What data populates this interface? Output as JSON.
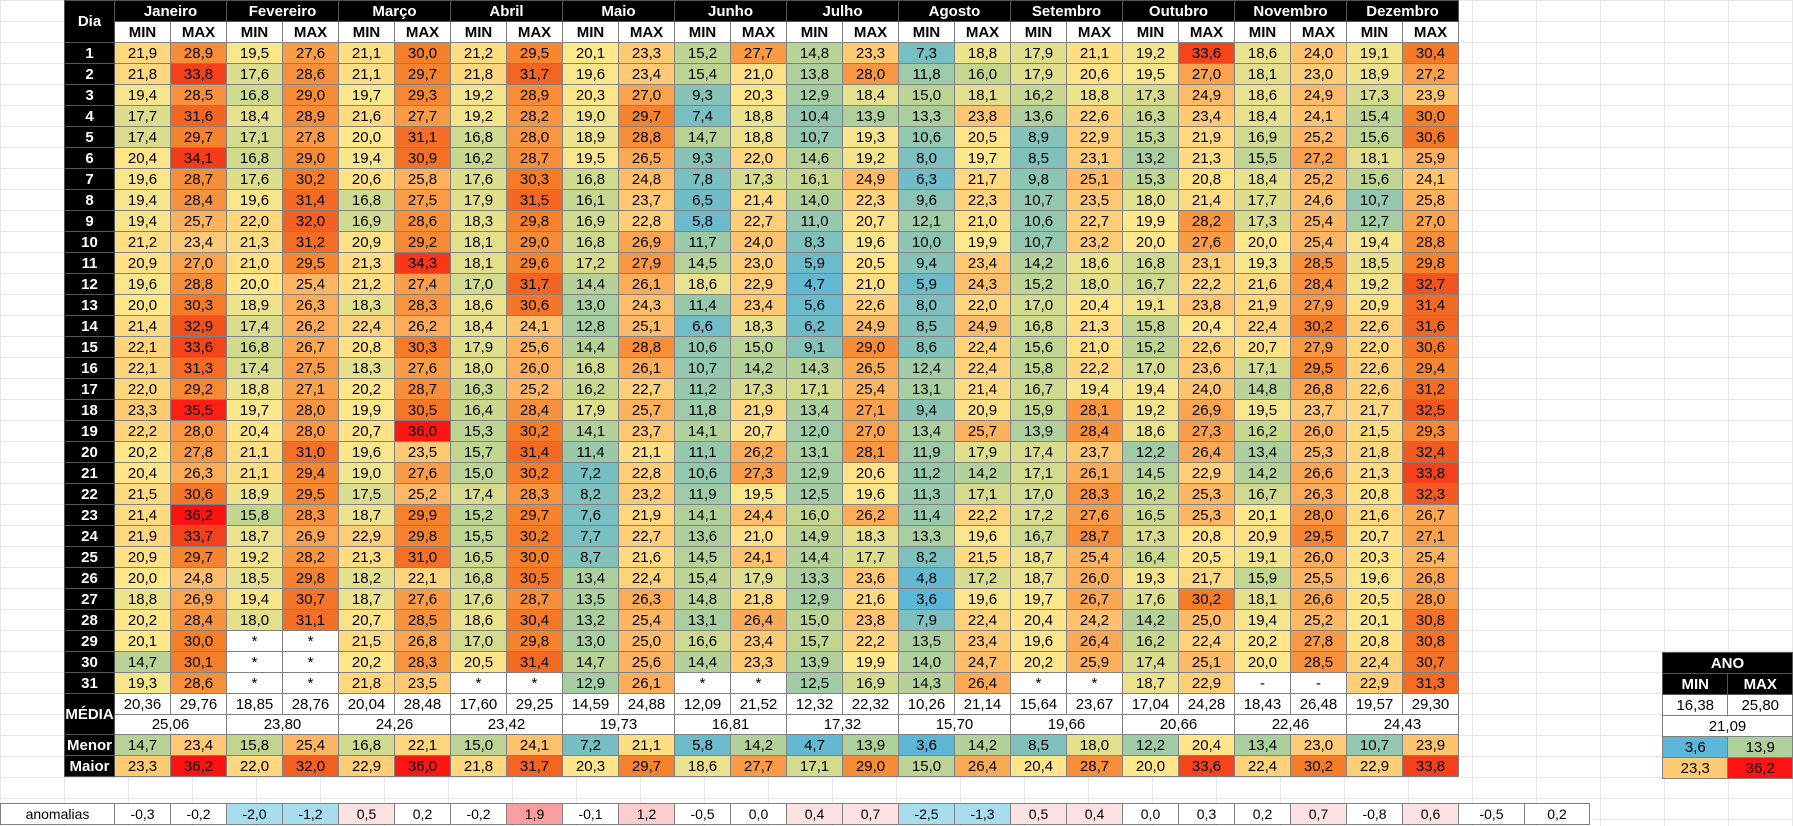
{
  "header": {
    "day_label": "Dia",
    "min_label": "MIN",
    "max_label": "MAX",
    "months": [
      "Janeiro",
      "Fevereiro",
      "Março",
      "Abril",
      "Maio",
      "Junho",
      "Julho",
      "Agosto",
      "Setembro",
      "Outubro",
      "Novembro",
      "Dezembro"
    ]
  },
  "days": [
    "1",
    "2",
    "3",
    "4",
    "5",
    "6",
    "7",
    "8",
    "9",
    "10",
    "11",
    "12",
    "13",
    "14",
    "15",
    "16",
    "17",
    "18",
    "19",
    "20",
    "21",
    "22",
    "23",
    "24",
    "25",
    "26",
    "27",
    "28",
    "29",
    "30",
    "31"
  ],
  "rows": [
    [
      "21,9",
      "28,9",
      "19,5",
      "27,6",
      "21,1",
      "30,0",
      "21,2",
      "29,5",
      "20,1",
      "23,3",
      "15,2",
      "27,7",
      "14,8",
      "23,3",
      "7,3",
      "18,8",
      "17,9",
      "21,1",
      "19,2",
      "33,6",
      "18,6",
      "24,0",
      "19,1",
      "30,4"
    ],
    [
      "21,8",
      "33,8",
      "17,6",
      "28,6",
      "21,1",
      "29,7",
      "21,8",
      "31,7",
      "19,6",
      "23,4",
      "15,4",
      "21,0",
      "13,8",
      "28,0",
      "11,8",
      "16,0",
      "17,9",
      "20,6",
      "19,5",
      "27,0",
      "18,1",
      "23,0",
      "18,9",
      "27,2"
    ],
    [
      "19,4",
      "28,5",
      "16,8",
      "29,0",
      "19,7",
      "29,3",
      "19,2",
      "28,9",
      "20,3",
      "27,0",
      "9,3",
      "20,3",
      "12,9",
      "18,4",
      "15,0",
      "18,1",
      "16,2",
      "18,8",
      "17,3",
      "24,9",
      "18,6",
      "24,9",
      "17,3",
      "23,9"
    ],
    [
      "17,7",
      "31,6",
      "18,4",
      "28,9",
      "21,6",
      "27,7",
      "19,2",
      "28,2",
      "19,0",
      "29,7",
      "7,4",
      "18,8",
      "10,4",
      "13,9",
      "13,3",
      "23,8",
      "13,6",
      "22,6",
      "16,3",
      "23,4",
      "18,4",
      "24,1",
      "15,4",
      "30,0"
    ],
    [
      "17,4",
      "29,7",
      "17,1",
      "27,8",
      "20,0",
      "31,1",
      "16,8",
      "28,0",
      "18,9",
      "28,8",
      "14,7",
      "18,8",
      "10,7",
      "19,3",
      "10,6",
      "20,5",
      "8,9",
      "22,9",
      "15,3",
      "21,9",
      "16,9",
      "25,2",
      "15,6",
      "30,6"
    ],
    [
      "20,4",
      "34,1",
      "16,8",
      "29,0",
      "19,4",
      "30,9",
      "16,2",
      "28,7",
      "19,5",
      "26,5",
      "9,3",
      "22,0",
      "14,6",
      "19,2",
      "8,0",
      "19,7",
      "8,5",
      "23,1",
      "13,2",
      "21,3",
      "15,5",
      "27,2",
      "18,1",
      "25,9"
    ],
    [
      "19,6",
      "28,7",
      "17,6",
      "30,2",
      "20,6",
      "25,8",
      "17,6",
      "30,3",
      "16,8",
      "24,8",
      "7,8",
      "17,3",
      "16,1",
      "24,9",
      "6,3",
      "21,7",
      "9,8",
      "25,1",
      "15,3",
      "20,8",
      "18,4",
      "25,2",
      "15,6",
      "24,1"
    ],
    [
      "19,4",
      "28,4",
      "19,6",
      "31,4",
      "16,8",
      "27,5",
      "17,9",
      "31,5",
      "16,1",
      "23,7",
      "6,5",
      "21,4",
      "14,0",
      "22,3",
      "9,6",
      "22,3",
      "10,7",
      "23,5",
      "18,0",
      "21,4",
      "17,7",
      "24,6",
      "10,7",
      "25,8"
    ],
    [
      "19,4",
      "25,7",
      "22,0",
      "32,0",
      "16,9",
      "28,6",
      "18,3",
      "29,8",
      "16,9",
      "22,8",
      "5,8",
      "22,7",
      "11,0",
      "20,7",
      "12,1",
      "21,0",
      "10,6",
      "22,7",
      "19,9",
      "28,2",
      "17,3",
      "25,4",
      "12,7",
      "27,0"
    ],
    [
      "21,2",
      "23,4",
      "21,3",
      "31,2",
      "20,9",
      "29,2",
      "18,1",
      "29,0",
      "16,8",
      "26,9",
      "11,7",
      "24,0",
      "8,3",
      "19,6",
      "10,0",
      "19,9",
      "10,7",
      "23,2",
      "20,0",
      "27,6",
      "20,0",
      "25,4",
      "19,4",
      "28,8"
    ],
    [
      "20,9",
      "27,0",
      "21,0",
      "29,5",
      "21,3",
      "34,3",
      "18,1",
      "29,6",
      "17,2",
      "27,9",
      "14,5",
      "23,0",
      "5,9",
      "20,5",
      "9,4",
      "23,4",
      "14,2",
      "18,6",
      "16,8",
      "23,1",
      "19,3",
      "28,5",
      "18,5",
      "29,8"
    ],
    [
      "19,6",
      "28,8",
      "20,0",
      "25,4",
      "21,2",
      "27,4",
      "17,0",
      "31,7",
      "14,4",
      "26,1",
      "18,6",
      "22,9",
      "4,7",
      "21,0",
      "5,9",
      "24,3",
      "15,2",
      "18,0",
      "16,7",
      "22,2",
      "21,6",
      "28,4",
      "19,2",
      "32,7"
    ],
    [
      "20,0",
      "30,3",
      "18,9",
      "26,3",
      "18,3",
      "28,3",
      "18,6",
      "30,6",
      "13,0",
      "24,3",
      "11,4",
      "23,4",
      "5,6",
      "22,6",
      "8,0",
      "22,0",
      "17,0",
      "20,4",
      "19,1",
      "23,8",
      "21,9",
      "27,9",
      "20,9",
      "31,4"
    ],
    [
      "21,4",
      "32,9",
      "17,4",
      "26,2",
      "22,4",
      "26,2",
      "18,4",
      "24,1",
      "12,8",
      "25,1",
      "6,6",
      "18,3",
      "6,2",
      "24,9",
      "8,5",
      "24,9",
      "16,8",
      "21,3",
      "15,8",
      "20,4",
      "22,4",
      "30,2",
      "22,6",
      "31,6"
    ],
    [
      "22,1",
      "33,6",
      "16,8",
      "26,7",
      "20,8",
      "30,3",
      "17,9",
      "25,6",
      "14,4",
      "28,8",
      "10,6",
      "15,0",
      "9,1",
      "29,0",
      "8,6",
      "22,4",
      "15,6",
      "21,0",
      "15,2",
      "22,6",
      "20,7",
      "27,9",
      "22,0",
      "30,6"
    ],
    [
      "22,1",
      "31,3",
      "17,4",
      "27,5",
      "18,3",
      "27,6",
      "18,0",
      "26,0",
      "16,8",
      "26,1",
      "10,7",
      "14,2",
      "14,3",
      "26,5",
      "12,4",
      "22,4",
      "15,8",
      "22,2",
      "17,0",
      "23,6",
      "17,1",
      "29,5",
      "22,6",
      "29,4"
    ],
    [
      "22,0",
      "29,2",
      "18,8",
      "27,1",
      "20,2",
      "28,7",
      "16,3",
      "25,2",
      "16,2",
      "22,7",
      "11,2",
      "17,3",
      "17,1",
      "25,4",
      "13,1",
      "21,4",
      "16,7",
      "19,4",
      "19,4",
      "24,0",
      "14,8",
      "26,8",
      "22,6",
      "31,2"
    ],
    [
      "23,3",
      "35,5",
      "19,7",
      "28,0",
      "19,9",
      "30,5",
      "16,4",
      "28,4",
      "17,9",
      "25,7",
      "11,8",
      "21,9",
      "13,4",
      "27,1",
      "9,4",
      "20,9",
      "15,9",
      "28,1",
      "19,2",
      "26,9",
      "19,5",
      "23,7",
      "21,7",
      "32,5"
    ],
    [
      "22,2",
      "28,0",
      "20,4",
      "28,0",
      "20,7",
      "36,0",
      "15,3",
      "30,2",
      "14,1",
      "23,7",
      "14,1",
      "20,7",
      "12,0",
      "27,0",
      "13,4",
      "25,7",
      "13,9",
      "28,4",
      "18,6",
      "27,3",
      "16,2",
      "26,0",
      "21,5",
      "29,3"
    ],
    [
      "20,2",
      "27,8",
      "21,1",
      "31,0",
      "19,6",
      "23,5",
      "15,7",
      "31,4",
      "11,4",
      "21,1",
      "11,1",
      "26,2",
      "13,1",
      "28,1",
      "11,9",
      "17,9",
      "17,4",
      "23,7",
      "12,2",
      "26,4",
      "13,4",
      "25,3",
      "21,8",
      "32,4"
    ],
    [
      "20,4",
      "26,3",
      "21,1",
      "29,4",
      "19,0",
      "27,6",
      "15,0",
      "30,2",
      "7,2",
      "22,8",
      "10,6",
      "27,3",
      "12,9",
      "20,6",
      "11,2",
      "14,2",
      "17,1",
      "26,1",
      "14,5",
      "22,9",
      "14,2",
      "26,6",
      "21,3",
      "33,8"
    ],
    [
      "21,5",
      "30,6",
      "18,9",
      "29,5",
      "17,5",
      "25,2",
      "17,4",
      "28,3",
      "8,2",
      "23,2",
      "11,9",
      "19,5",
      "12,5",
      "19,6",
      "11,3",
      "17,1",
      "17,0",
      "28,3",
      "16,2",
      "25,3",
      "16,7",
      "26,3",
      "20,8",
      "32,3"
    ],
    [
      "21,4",
      "36,2",
      "15,8",
      "28,3",
      "18,7",
      "29,9",
      "15,2",
      "29,7",
      "7,6",
      "21,9",
      "14,1",
      "24,4",
      "16,0",
      "26,2",
      "11,4",
      "22,2",
      "17,2",
      "27,6",
      "16,5",
      "25,3",
      "20,1",
      "28,0",
      "21,6",
      "26,7"
    ],
    [
      "21,9",
      "33,7",
      "18,7",
      "26,9",
      "22,9",
      "29,8",
      "15,5",
      "30,2",
      "7,7",
      "22,7",
      "13,6",
      "21,0",
      "14,9",
      "18,3",
      "13,3",
      "19,6",
      "16,7",
      "28,7",
      "17,3",
      "20,8",
      "20,9",
      "29,5",
      "20,7",
      "27,1"
    ],
    [
      "20,9",
      "29,7",
      "19,2",
      "28,2",
      "21,3",
      "31,0",
      "16,5",
      "30,0",
      "8,7",
      "21,6",
      "14,5",
      "24,1",
      "14,4",
      "17,7",
      "8,2",
      "21,5",
      "18,7",
      "25,4",
      "16,4",
      "20,5",
      "19,1",
      "26,0",
      "20,3",
      "25,4"
    ],
    [
      "20,0",
      "24,8",
      "18,5",
      "29,8",
      "18,2",
      "22,1",
      "16,8",
      "30,5",
      "13,4",
      "22,4",
      "15,4",
      "17,9",
      "13,3",
      "23,6",
      "4,8",
      "17,2",
      "18,7",
      "26,0",
      "19,3",
      "21,7",
      "15,9",
      "25,5",
      "19,6",
      "26,8"
    ],
    [
      "18,8",
      "26,9",
      "19,4",
      "30,7",
      "18,7",
      "27,6",
      "17,6",
      "28,7",
      "13,5",
      "26,3",
      "14,8",
      "21,8",
      "12,9",
      "21,6",
      "3,6",
      "19,6",
      "19,7",
      "26,7",
      "17,6",
      "30,2",
      "18,1",
      "26,6",
      "20,5",
      "28,0"
    ],
    [
      "20,2",
      "28,4",
      "18,0",
      "31,1",
      "20,7",
      "28,5",
      "18,6",
      "30,4",
      "13,2",
      "25,4",
      "13,1",
      "26,4",
      "15,0",
      "23,8",
      "7,9",
      "22,4",
      "20,4",
      "24,2",
      "14,2",
      "25,0",
      "19,4",
      "25,2",
      "20,1",
      "30,8"
    ],
    [
      "20,1",
      "30,0",
      "*",
      "*",
      "21,5",
      "26,8",
      "17,0",
      "29,8",
      "13,0",
      "25,0",
      "16,6",
      "23,4",
      "15,7",
      "22,2",
      "13,5",
      "23,4",
      "19,6",
      "26,4",
      "16,2",
      "22,4",
      "20,2",
      "27,8",
      "20,8",
      "30,8"
    ],
    [
      "14,7",
      "30,1",
      "*",
      "*",
      "20,2",
      "28,3",
      "20,5",
      "31,4",
      "14,7",
      "25,6",
      "14,4",
      "23,3",
      "13,9",
      "19,9",
      "14,0",
      "24,7",
      "20,2",
      "25,9",
      "17,4",
      "25,1",
      "20,0",
      "28,5",
      "22,4",
      "30,7"
    ],
    [
      "19,3",
      "28,6",
      "*",
      "*",
      "21,8",
      "23,5",
      "*",
      "*",
      "12,9",
      "26,1",
      "*",
      "*",
      "12,5",
      "16,9",
      "14,3",
      "26,4",
      "*",
      "*",
      "18,7",
      "22,9",
      "-",
      "-",
      "22,9",
      "31,3"
    ]
  ],
  "summary": {
    "media_label": "MÉDIA",
    "menor_label": "Menor",
    "maior_label": "Maior",
    "media": [
      "20,36",
      "29,76",
      "18,85",
      "28,76",
      "20,04",
      "28,48",
      "17,60",
      "29,25",
      "14,59",
      "24,88",
      "12,09",
      "21,52",
      "12,32",
      "22,32",
      "10,26",
      "21,14",
      "15,64",
      "23,67",
      "17,04",
      "24,28",
      "18,43",
      "26,48",
      "19,57",
      "29,30"
    ],
    "media_avg": [
      "25,06",
      "23,80",
      "24,26",
      "23,42",
      "19,73",
      "16,81",
      "17,32",
      "15,70",
      "19,66",
      "20,66",
      "22,46",
      "24,43"
    ],
    "menor": [
      "14,7",
      "23,4",
      "15,8",
      "25,4",
      "16,8",
      "22,1",
      "15,0",
      "24,1",
      "7,2",
      "21,1",
      "5,8",
      "14,2",
      "4,7",
      "13,9",
      "3,6",
      "14,2",
      "8,5",
      "18,0",
      "12,2",
      "20,4",
      "13,4",
      "23,0",
      "10,7",
      "23,9"
    ],
    "maior": [
      "23,3",
      "36,2",
      "22,0",
      "32,0",
      "22,9",
      "36,0",
      "21,8",
      "31,7",
      "20,3",
      "29,7",
      "18,6",
      "27,7",
      "17,1",
      "29,0",
      "15,0",
      "26,4",
      "20,4",
      "28,7",
      "20,0",
      "33,6",
      "22,4",
      "30,2",
      "22,9",
      "33,8"
    ]
  },
  "ano": {
    "title": "ANO",
    "min_label": "MIN",
    "max_label": "MAX",
    "media": [
      "16,38",
      "25,80"
    ],
    "media_avg": "21,09",
    "menor": [
      "3,6",
      "13,9"
    ],
    "maior": [
      "23,3",
      "36,2"
    ]
  },
  "anomalies": {
    "label": "anomalias",
    "values": [
      "-0,3",
      "-0,2",
      "-2,0",
      "-1,2",
      "0,5",
      "0,2",
      "-0,2",
      "1,9",
      "-0,1",
      "1,2",
      "-0,5",
      "0,0",
      "0,4",
      "0,7",
      "-2,5",
      "-1,3",
      "0,5",
      "0,4",
      "0,0",
      "0,3",
      "0,2",
      "0,7",
      "-0,8",
      "0,6",
      "-0,5",
      "0,2"
    ]
  }
}
